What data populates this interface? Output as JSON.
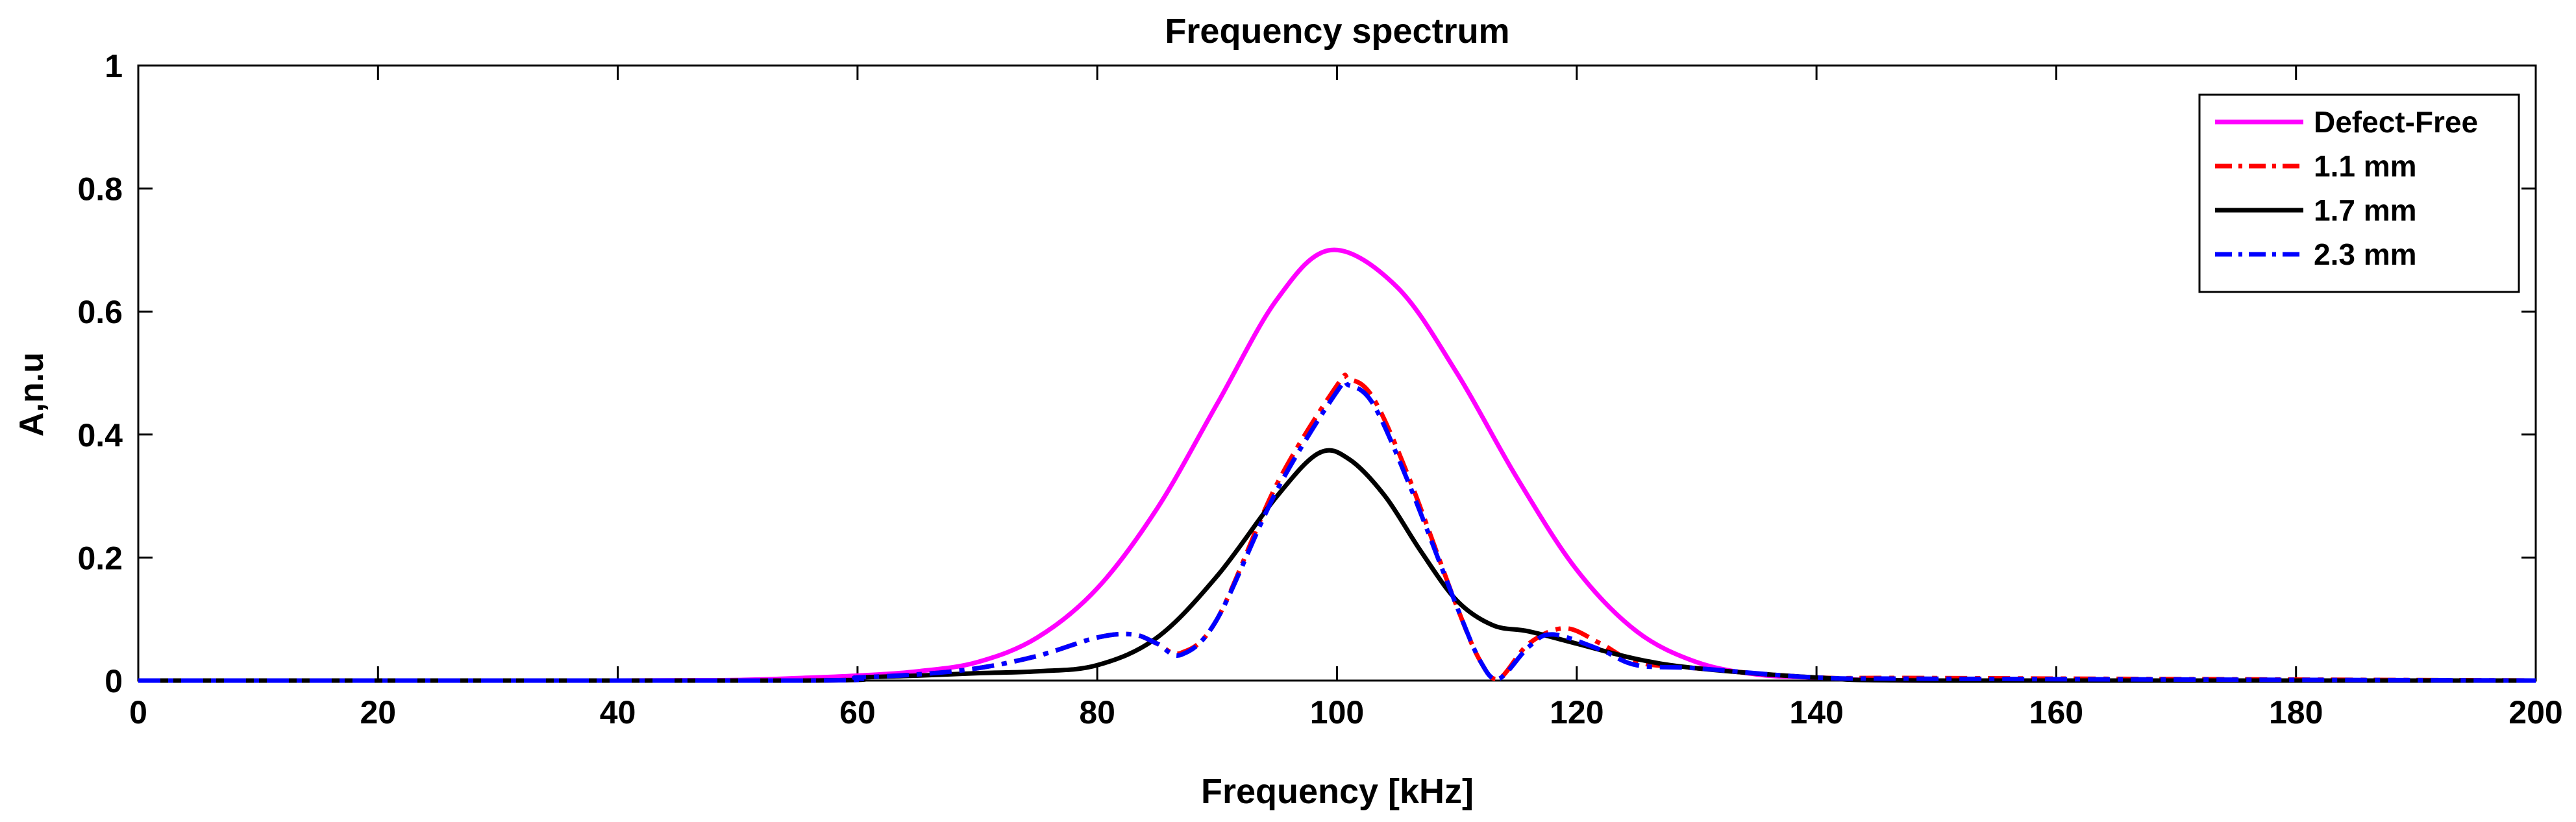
{
  "chart_data": {
    "type": "line",
    "title": "Frequency spectrum",
    "xlabel": "Frequency [kHz]",
    "ylabel": "A,n.u",
    "xlim": [
      0,
      200
    ],
    "ylim": [
      0,
      1
    ],
    "xticks": [
      0,
      20,
      40,
      60,
      80,
      100,
      120,
      140,
      160,
      180,
      200
    ],
    "yticks": [
      0,
      0.2,
      0.4,
      0.6,
      0.8,
      1
    ],
    "ytick_labels": [
      "0",
      "0.2",
      "0.4",
      "0.6",
      "0.8",
      "1"
    ],
    "grid": false,
    "legend_position": "top-right",
    "series": [
      {
        "name": "Defect-Free",
        "color": "#ff00ff",
        "style": "solid",
        "x": [
          0,
          40,
          50,
          55,
          60,
          65,
          70,
          75,
          80,
          85,
          90,
          95,
          99.5,
          105,
          110,
          115,
          120,
          125,
          130,
          135,
          140,
          150,
          200
        ],
        "y": [
          0,
          0,
          0.001,
          0.004,
          0.008,
          0.015,
          0.03,
          0.07,
          0.15,
          0.28,
          0.45,
          0.62,
          0.7,
          0.64,
          0.5,
          0.33,
          0.18,
          0.08,
          0.03,
          0.01,
          0.005,
          0,
          0
        ]
      },
      {
        "name": "1.1 mm",
        "color": "#ff0000",
        "style": "dashdot",
        "x": [
          0,
          55,
          60,
          65,
          70,
          75,
          80,
          83,
          85,
          87,
          90,
          95,
          100,
          101,
          103,
          106,
          110,
          112,
          113.5,
          116,
          119,
          122,
          125,
          130,
          140,
          150,
          200
        ],
        "y": [
          0,
          0,
          0.005,
          0.01,
          0.02,
          0.04,
          0.07,
          0.075,
          0.06,
          0.045,
          0.1,
          0.32,
          0.48,
          0.49,
          0.46,
          0.33,
          0.12,
          0.03,
          0.003,
          0.06,
          0.085,
          0.06,
          0.03,
          0.02,
          0.005,
          0.004,
          0
        ]
      },
      {
        "name": "1.7 mm",
        "color": "#000000",
        "style": "solid",
        "x": [
          0,
          55,
          60,
          65,
          70,
          75,
          80,
          85,
          90,
          95,
          98.5,
          101,
          104,
          107,
          110,
          113,
          116,
          120,
          125,
          130,
          140,
          150,
          200
        ],
        "y": [
          0,
          0,
          0.005,
          0.008,
          0.012,
          0.015,
          0.025,
          0.07,
          0.17,
          0.3,
          0.37,
          0.36,
          0.3,
          0.21,
          0.13,
          0.09,
          0.08,
          0.06,
          0.035,
          0.02,
          0.005,
          0,
          0
        ]
      },
      {
        "name": "2.3 mm",
        "color": "#0000ff",
        "style": "dashdot",
        "x": [
          0,
          55,
          60,
          65,
          70,
          75,
          80,
          83,
          85,
          87,
          90,
          95,
          100,
          101,
          103,
          106,
          110,
          112,
          113.5,
          116,
          118,
          122,
          125,
          130,
          140,
          150,
          200
        ],
        "y": [
          0,
          0,
          0.005,
          0.01,
          0.02,
          0.04,
          0.07,
          0.075,
          0.06,
          0.042,
          0.1,
          0.31,
          0.47,
          0.48,
          0.45,
          0.32,
          0.12,
          0.03,
          0.003,
          0.055,
          0.075,
          0.05,
          0.025,
          0.02,
          0.005,
          0.003,
          0
        ]
      }
    ]
  }
}
